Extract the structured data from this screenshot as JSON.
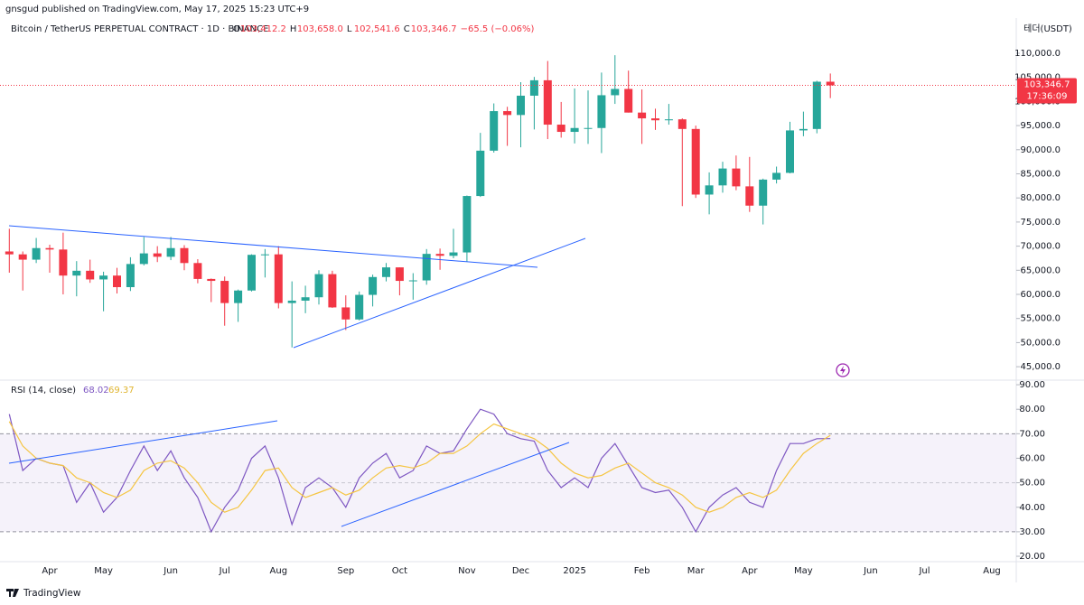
{
  "header": {
    "publisher": "gnsgud published on TradingView.com, May 17, 2025 15:23 UTC+9",
    "symbol": "Bitcoin / TetherUS PERPETUAL CONTRACT · 1D · BINANCE",
    "ohlc": [
      {
        "key": "O",
        "value": "103,412.2"
      },
      {
        "key": "H",
        "value": "103,658.0"
      },
      {
        "key": "L",
        "value": "102,541.6"
      },
      {
        "key": "C",
        "value": "103,346.7"
      }
    ],
    "change": "−65.5 (−0.06%)",
    "currency": "테더(USDT)",
    "brand": "TradingView"
  },
  "chart_data": [
    {
      "type": "candlestick",
      "up_color": "#26a69a",
      "down_color": "#f23645",
      "ylim": [
        42400,
        117300
      ],
      "yticks": [
        {
          "value": 45000,
          "label": "45,000.0"
        },
        {
          "value": 50000,
          "label": "50,000.0"
        },
        {
          "value": 55000,
          "label": "55,000.0"
        },
        {
          "value": 60000,
          "label": "60,000.0"
        },
        {
          "value": 65000,
          "label": "65,000.0"
        },
        {
          "value": 70000,
          "label": "70,000.0"
        },
        {
          "value": 75000,
          "label": "75,000.0"
        },
        {
          "value": 80000,
          "label": "80,000.0"
        },
        {
          "value": 85000,
          "label": "85,000.0"
        },
        {
          "value": 90000,
          "label": "90,000.0"
        },
        {
          "value": 95000,
          "label": "95,000.0"
        },
        {
          "value": 100000,
          "label": "100,000.0"
        },
        {
          "value": 105000,
          "label": "105,000.0"
        },
        {
          "value": 110000,
          "label": "110,000.0"
        }
      ],
      "price_line": {
        "value": 103346.7,
        "label": "103,346.7",
        "countdown": "17:36:09",
        "color": "#f23645"
      },
      "open": [
        68900,
        68300,
        67200,
        69600,
        69300,
        63900,
        64900,
        63100,
        63900,
        61500,
        66300,
        68500,
        67800,
        69600,
        66500,
        63200,
        62800,
        58200,
        60800,
        68200,
        68300,
        58200,
        58700,
        59400,
        64200,
        57300,
        54800,
        59900,
        63600,
        65600,
        62800,
        62900,
        68400,
        68000,
        68700,
        80400,
        89800,
        98000,
        97200,
        101200,
        104400,
        95200,
        93700,
        94500,
        94500,
        101300,
        102600,
        97700,
        96500,
        96100,
        96300,
        94300,
        80700,
        82600,
        86100,
        82400,
        78400,
        83800,
        85200,
        94000,
        94300,
        104100,
        null,
        null,
        null,
        null,
        null,
        null,
        null,
        null,
        null,
        null,
        null,
        null,
        null,
        null
      ],
      "high": [
        73600,
        68900,
        71700,
        70300,
        72800,
        66900,
        67200,
        64700,
        65500,
        67700,
        71900,
        70000,
        71900,
        70200,
        67300,
        63300,
        63700,
        61000,
        68300,
        69400,
        70000,
        62700,
        61800,
        65000,
        64900,
        59800,
        60600,
        64100,
        66500,
        65600,
        64400,
        69400,
        69500,
        73600,
        80500,
        93500,
        99600,
        98900,
        104000,
        105100,
        108400,
        99900,
        102700,
        102300,
        106000,
        109600,
        106400,
        102500,
        98500,
        99500,
        96500,
        95000,
        85300,
        87500,
        88800,
        88500,
        84000,
        86500,
        95800,
        97900,
        104300,
        105800,
        null,
        null,
        null,
        null,
        null,
        null,
        null,
        null,
        null,
        null,
        null,
        null,
        null,
        null
      ],
      "low": [
        64500,
        60800,
        66500,
        64500,
        60000,
        59600,
        62400,
        56500,
        60200,
        60700,
        66000,
        66700,
        67100,
        65000,
        62300,
        58400,
        53500,
        54300,
        60600,
        63500,
        57100,
        49000,
        56100,
        57900,
        57200,
        52600,
        54600,
        57500,
        62700,
        59800,
        58900,
        62000,
        65100,
        67500,
        66800,
        80200,
        89400,
        90800,
        90500,
        94200,
        92200,
        92500,
        91300,
        91200,
        89300,
        99500,
        97700,
        91200,
        94100,
        95200,
        78300,
        80000,
        76600,
        81100,
        81600,
        77100,
        74500,
        83000,
        85100,
        92800,
        93400,
        100700,
        null,
        null,
        null,
        null,
        null,
        null,
        null,
        null,
        null,
        null,
        null,
        null,
        null,
        null
      ],
      "close": [
        68300,
        67200,
        69600,
        69300,
        63900,
        64900,
        63100,
        63900,
        61500,
        66300,
        68500,
        67800,
        69600,
        66500,
        63200,
        62800,
        58200,
        60800,
        68200,
        68300,
        58200,
        58700,
        59400,
        64200,
        57300,
        54800,
        59900,
        63600,
        65600,
        62800,
        62900,
        68400,
        68000,
        68700,
        80400,
        89800,
        98000,
        97200,
        101200,
        104400,
        95200,
        93700,
        94500,
        94500,
        101300,
        102600,
        97700,
        96500,
        96100,
        96300,
        94300,
        80700,
        82600,
        86100,
        82400,
        78400,
        83800,
        85200,
        94000,
        94300,
        104100,
        103346.7,
        null,
        null,
        null,
        null,
        null,
        null,
        null,
        null,
        null,
        null,
        null,
        null,
        null,
        null
      ]
    },
    {
      "type": "line",
      "title": "RSI (14, close)",
      "categories": [
        null,
        null,
        null,
        "Apr",
        null,
        null,
        null,
        "May",
        null,
        null,
        null,
        null,
        "Jun",
        null,
        null,
        null,
        "Jul",
        null,
        null,
        null,
        "Aug",
        null,
        null,
        null,
        null,
        "Sep",
        null,
        null,
        null,
        "Oct",
        null,
        null,
        null,
        null,
        "Nov",
        null,
        null,
        null,
        "Dec",
        null,
        null,
        null,
        "2025",
        null,
        null,
        null,
        null,
        "Feb",
        null,
        null,
        null,
        "Mar",
        null,
        null,
        null,
        "Apr",
        null,
        null,
        null,
        "May",
        null,
        null,
        null,
        null,
        "Jun",
        null,
        null,
        null,
        "Jul",
        null,
        null,
        null,
        null,
        "Aug",
        null,
        null
      ],
      "ylim": [
        17.8,
        91.5
      ],
      "yticks": [
        {
          "value": 20,
          "label": "20.00"
        },
        {
          "value": 30,
          "label": "30.00"
        },
        {
          "value": 40,
          "label": "40.00"
        },
        {
          "value": 50,
          "label": "50.00"
        },
        {
          "value": 60,
          "label": "60.00"
        },
        {
          "value": 70,
          "label": "70.00"
        },
        {
          "value": 80,
          "label": "80.00"
        },
        {
          "value": 90,
          "label": "90.00"
        }
      ],
      "bands": [
        30,
        50,
        70
      ],
      "series": [
        {
          "color": "#7e57c2",
          "values": [
            78,
            55,
            60,
            58,
            57,
            42,
            50,
            38,
            44,
            55,
            65,
            55,
            63,
            52,
            44,
            30,
            40,
            47,
            60,
            65,
            52,
            33,
            48,
            52,
            48,
            40,
            52,
            58,
            62,
            52,
            55,
            65,
            62,
            63,
            72,
            80,
            78,
            70,
            68,
            67,
            55,
            48,
            52,
            48,
            60,
            66,
            57,
            48,
            46,
            47,
            40,
            30,
            40,
            45,
            48,
            42,
            40,
            55,
            66,
            66,
            68,
            68.02,
            null,
            null,
            null,
            null,
            null,
            null,
            null,
            null,
            null,
            null,
            null,
            null,
            null,
            null
          ]
        },
        {
          "color": "#f5c542",
          "values": [
            75,
            65,
            60,
            58,
            57,
            52,
            50,
            46,
            44,
            47,
            55,
            58,
            59,
            56,
            50,
            42,
            38,
            40,
            47,
            55,
            56,
            48,
            44,
            46,
            48,
            45,
            47,
            52,
            56,
            57,
            56,
            58,
            62,
            62,
            65,
            70,
            74,
            72,
            70,
            68,
            64,
            58,
            54,
            52,
            53,
            56,
            58,
            54,
            50,
            48,
            45,
            40,
            38,
            40,
            44,
            46,
            44,
            47,
            55,
            62,
            66,
            69.37,
            null,
            null,
            null,
            null,
            null,
            null,
            null,
            null,
            null,
            null,
            null,
            null,
            null,
            null
          ]
        }
      ]
    }
  ]
}
